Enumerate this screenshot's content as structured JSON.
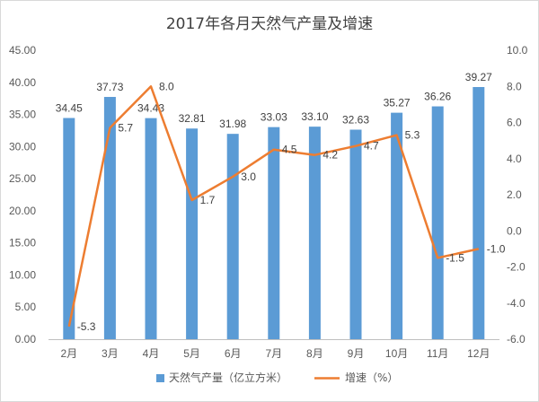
{
  "chart_data": {
    "type": "bar",
    "title": "2017年各月天然气产量及增速",
    "categories": [
      "2月",
      "3月",
      "4月",
      "5月",
      "6月",
      "7月",
      "8月",
      "9月",
      "10月",
      "11月",
      "12月"
    ],
    "series": [
      {
        "name": "天然气产量（亿立方米）",
        "type": "bar",
        "axis": "left",
        "color": "#5B9BD5",
        "values": [
          34.45,
          37.73,
          34.43,
          32.81,
          31.98,
          33.03,
          33.1,
          32.63,
          35.27,
          36.26,
          39.27
        ],
        "labels": [
          "34.45",
          "37.73",
          "34.43",
          "32.81",
          "31.98",
          "33.03",
          "33.10",
          "32.63",
          "35.27",
          "36.26",
          "39.27"
        ]
      },
      {
        "name": "增速（%）",
        "type": "line",
        "axis": "right",
        "color": "#ED7D31",
        "values": [
          -5.3,
          5.7,
          8.0,
          1.7,
          3.0,
          4.5,
          4.2,
          4.7,
          5.3,
          -1.5,
          -1.0
        ],
        "labels": [
          "-5.3",
          "5.7",
          "8.0",
          "1.7",
          "3.0",
          "4.5",
          "4.2",
          "4.7",
          "5.3",
          "-1.5",
          "-1.0"
        ]
      }
    ],
    "y_left": {
      "min": 0,
      "max": 45,
      "ticks": [
        "0.00",
        "5.00",
        "10.00",
        "15.00",
        "20.00",
        "25.00",
        "30.00",
        "35.00",
        "40.00",
        "45.00"
      ]
    },
    "y_right": {
      "min": -6,
      "max": 10,
      "ticks": [
        "-6.0",
        "-4.0",
        "-2.0",
        "0.0",
        "2.0",
        "4.0",
        "6.0",
        "8.0",
        "10.0"
      ]
    },
    "grid": false,
    "legend_position": "bottom"
  }
}
